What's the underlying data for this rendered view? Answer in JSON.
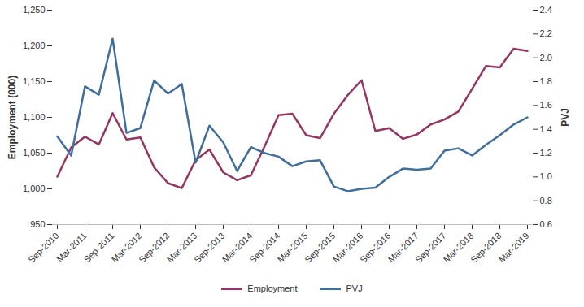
{
  "chart_data": {
    "type": "line",
    "y_label": "Employment (000)",
    "y2_label": "PVJ",
    "categories": [
      "Sep-2010",
      null,
      "Mar-2011",
      null,
      "Sep-2011",
      null,
      "Mar-2012",
      null,
      "Sep-2012",
      null,
      "Mar-2013",
      null,
      "Sep-2013",
      null,
      "Mar-2014",
      null,
      "Sep-2014",
      null,
      "Mar-2015",
      null,
      "Sep-2015",
      null,
      "Mar-2016",
      null,
      "Sep-2016",
      null,
      "Mar-2017",
      null,
      "Sep-2017",
      null,
      "Mar-2018",
      null,
      "Sep-2018",
      null,
      "Mar-2019"
    ],
    "series": [
      {
        "name": "Employment",
        "color": "#953562",
        "values": [
          1017,
          1058,
          1073,
          1062,
          1106,
          1069,
          1072,
          1030,
          1008,
          1001,
          1040,
          1055,
          1023,
          1012,
          1019,
          1060,
          1103,
          1105,
          1075,
          1071,
          1105,
          1131,
          1152,
          1081,
          1085,
          1070,
          1076,
          1090,
          1097,
          1108,
          1140,
          1172,
          1170,
          1196,
          1193
        ]
      },
      {
        "name": "PVJ",
        "color": "#3f6e9c",
        "axis": "y2",
        "values": [
          1.34,
          1.18,
          1.76,
          1.69,
          2.16,
          1.37,
          1.41,
          1.81,
          1.7,
          1.78,
          1.12,
          1.43,
          1.29,
          1.05,
          1.25,
          1.2,
          1.17,
          1.09,
          1.13,
          1.14,
          0.92,
          0.88,
          0.9,
          0.91,
          1.0,
          1.07,
          1.06,
          1.07,
          1.22,
          1.24,
          1.18,
          1.27,
          1.35,
          1.44,
          1.5
        ]
      }
    ],
    "ylim": [
      950,
      1250
    ],
    "yticks": [
      950,
      {
        "value": 1000,
        "label": "1,000"
      },
      {
        "value": 1050,
        "label": "1,050"
      },
      {
        "value": 1100,
        "label": "1,100"
      },
      {
        "value": 1150,
        "label": "1,150"
      },
      {
        "value": 1200,
        "label": "1,200"
      },
      {
        "value": 1250,
        "label": "1,250"
      }
    ],
    "y2lim": [
      0.6,
      2.4
    ],
    "y2ticks": [
      0.6,
      0.8,
      {
        "value": 1.0,
        "label": "1.0"
      },
      1.2,
      1.4,
      1.6,
      1.8,
      {
        "value": 2.0,
        "label": "2.0"
      },
      2.2,
      2.4
    ],
    "grid": false,
    "legend": "bottom"
  }
}
